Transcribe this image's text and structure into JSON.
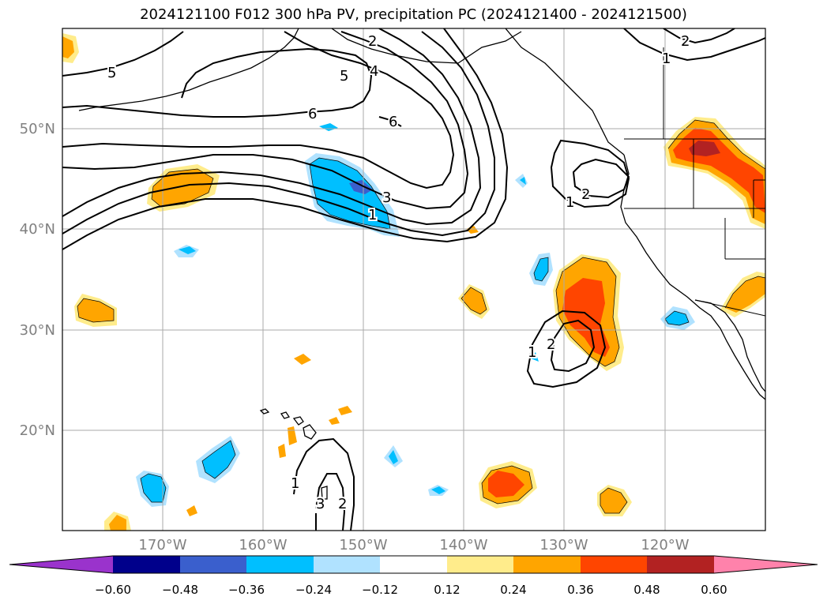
{
  "title": "2024121100 F012 300 hPa PV, precipitation PC (2024121400 - 2024121500)",
  "map": {
    "lat_labels": [
      "50°N",
      "40°N",
      "30°N",
      "20°N"
    ],
    "lon_labels": [
      "170°W",
      "160°W",
      "150°W",
      "140°W",
      "130°W",
      "120°W"
    ],
    "pv_contour_labels": [
      "5",
      "2",
      "4",
      "5",
      "2",
      "1",
      "6",
      "6",
      "3",
      "1",
      "2",
      "1",
      "1",
      "2",
      "1",
      "3",
      "2"
    ],
    "grid": "on",
    "label_color": "#808080"
  },
  "colorbar": {
    "tick_labels": [
      "−0.60",
      "−0.48",
      "−0.36",
      "−0.24",
      "−0.12",
      "0.12",
      "0.24",
      "0.36",
      "0.48",
      "0.60"
    ],
    "colors": [
      "#9a33cc",
      "#00008b",
      "#3a5fcd",
      "#00bfff",
      "#b0e2ff",
      "#ffffff",
      "#ffec8b",
      "#ffa500",
      "#ff4500",
      "#b22222",
      "#ff82ab"
    ]
  },
  "precip_colors": {
    "light_pos": "#ffec8b",
    "mid_pos": "#ffa500",
    "strong_pos": "#ff4500",
    "vstrong_pos": "#b22222",
    "light_neg": "#b0e2ff",
    "mid_neg": "#00bfff",
    "strong_neg": "#3a5fcd"
  }
}
